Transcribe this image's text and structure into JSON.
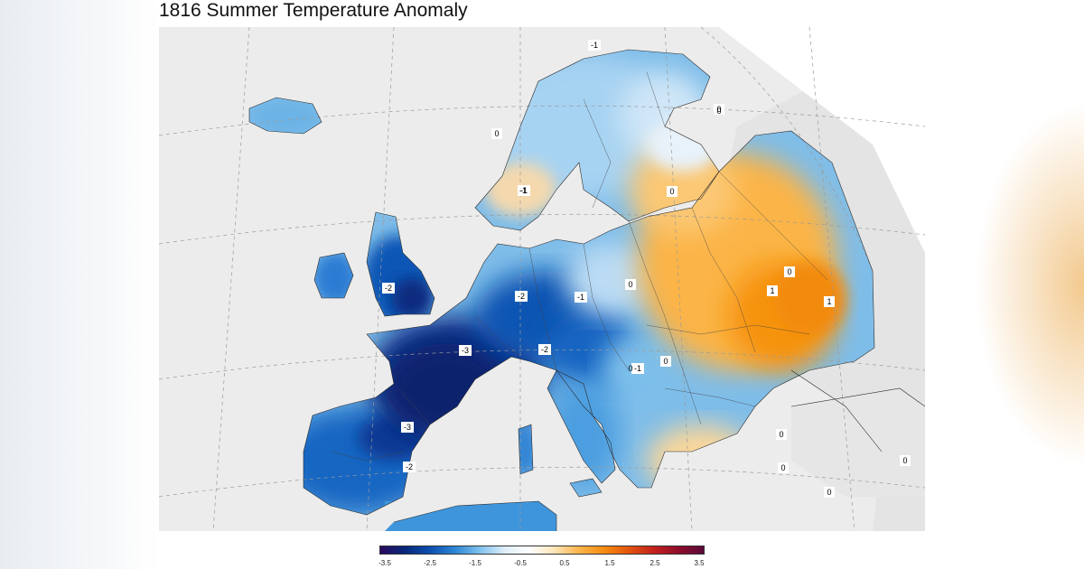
{
  "title": "1816 Summer Temperature Anomaly",
  "colorbar": {
    "ticks": [
      "-3.5",
      "-2.5",
      "-1.5",
      "-0.5",
      "0.5",
      "1.5",
      "2.5",
      "3.5"
    ],
    "colors": [
      "#2a0a5e",
      "#06287a",
      "#0d4fb0",
      "#2b86d6",
      "#80c2ee",
      "#dfeefa",
      "#ffffff",
      "#fde5b8",
      "#fbb44a",
      "#f68c12",
      "#e2540e",
      "#c3211c",
      "#8e0d2b",
      "#5a0a3a"
    ]
  },
  "contour_labels": [
    "-1",
    "0",
    "-1",
    "0",
    "0",
    "-2",
    "-2",
    "-3",
    "-1",
    "0",
    "-2",
    "0",
    "-1",
    "-3",
    "0",
    "0",
    "1",
    "1",
    "0",
    "-2",
    "0",
    "0",
    "0",
    "0",
    "-1"
  ]
}
